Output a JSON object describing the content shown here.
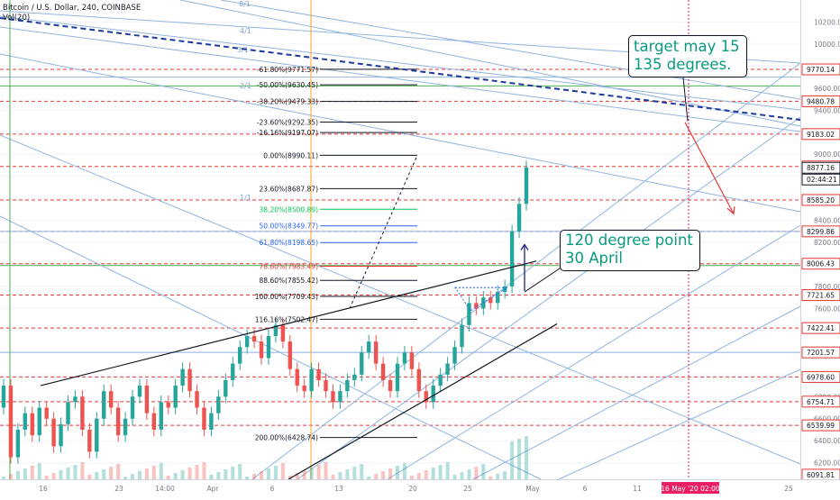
{
  "header": {
    "symbol_line": "Bitcoin / U.S. Dollar, 240, COINBASE",
    "vol_line": "Vol(20)"
  },
  "colors": {
    "up": "#26a69a",
    "down": "#ef5350",
    "hline": "#e53935",
    "blue_line": "#90b4e0",
    "teal_text": "#089981",
    "gann_dash": "#1e3a9c",
    "date_highlight": "#e91e63"
  },
  "callouts": {
    "target": [
      "target may 15",
      "135 degrees."
    ],
    "point": [
      "120 degree point",
      "30 April"
    ]
  },
  "chart_data": {
    "type": "candlestick",
    "y_axis": {
      "range": [
        6050,
        10400
      ],
      "tick_labels": [
        6200,
        6400,
        6600,
        6800,
        7000,
        7200,
        7400,
        7600,
        7800,
        8000,
        8200,
        8400,
        8600,
        8800,
        9000,
        9200,
        9400,
        9600,
        9800,
        10000,
        10200
      ],
      "price_tags": [
        9770.14,
        9480.78,
        9183.02,
        8889.46,
        8877.16,
        8585.2,
        8299.86,
        8006.43,
        7721.65,
        7422.41,
        7201.57,
        6978.6,
        6754.71,
        6539.99,
        6091.81
      ],
      "countdown": "02:44:21",
      "current_price": 8877.16
    },
    "x_axis": {
      "tick_labels": [
        "16",
        "23",
        "14:00",
        "Apr",
        "6",
        "13",
        "20",
        "25",
        "May",
        "6",
        "11",
        "25"
      ],
      "highlight_label": "16 May '20   02:00"
    },
    "horizontal_levels": [
      9770.14,
      9480.78,
      9183.02,
      8889.46,
      8585.2,
      8299.86,
      8006.43,
      7721.65,
      7422.41,
      6978.6,
      6754.71,
      6539.99
    ],
    "blue_horizontal_levels": [
      9700,
      8299.86,
      7201.57
    ],
    "fibonacci": [
      {
        "label": "-61.80%(9771.57)",
        "price": 9771.57,
        "color": "#131722"
      },
      {
        "label": "-50.00%(9630.45)",
        "price": 9630.45,
        "color": "#131722"
      },
      {
        "label": "-38.20%(9479.33)",
        "price": 9479.33,
        "color": "#131722"
      },
      {
        "label": "-23.60%(9292.35)",
        "price": 9292.35,
        "color": "#131722"
      },
      {
        "label": "-16.16%(9197.07)",
        "price": 9197.07,
        "color": "#131722"
      },
      {
        "label": "0.00%(8990.11)",
        "price": 8990.11,
        "color": "#131722"
      },
      {
        "label": "23.60%(8687.87)",
        "price": 8687.87,
        "color": "#131722"
      },
      {
        "label": "38.20%(8500.89)",
        "price": 8500.89,
        "color": "#00c853"
      },
      {
        "label": "50.00%(8349.77)",
        "price": 8349.77,
        "color": "#2962ff"
      },
      {
        "label": "61.80%(8198.65)",
        "price": 8198.65,
        "color": "#2962ff"
      },
      {
        "label": "78.60%(7983.49)",
        "price": 7983.49,
        "color": "#e53935"
      },
      {
        "label": "88.60%(7855.42)",
        "price": 7855.42,
        "color": "#131722"
      },
      {
        "label": "100.00%(7709.43)",
        "price": 7709.43,
        "color": "#131722"
      },
      {
        "label": "116.16%(7502.47)",
        "price": 7502.47,
        "color": "#131722"
      },
      {
        "label": "200.00%(6428.74)",
        "price": 6428.74,
        "color": "#131722"
      }
    ],
    "gann_labels": [
      "8/1",
      "4/1",
      "3/1",
      "2/1",
      "1/1"
    ],
    "candles_close": [
      6900,
      6250,
      6500,
      6650,
      6450,
      6700,
      6600,
      6350,
      6550,
      6750,
      6800,
      6500,
      6300,
      6600,
      6850,
      6700,
      6450,
      6600,
      6800,
      6900,
      6650,
      6500,
      6750,
      6700,
      6900,
      7050,
      6850,
      6700,
      6500,
      6650,
      6800,
      6950,
      7100,
      7250,
      7350,
      7300,
      7150,
      7350,
      7450,
      7300,
      7050,
      6900,
      6850,
      7050,
      6950,
      6850,
      6750,
      6850,
      6950,
      7000,
      7200,
      7300,
      7100,
      6950,
      6850,
      7100,
      7200,
      7050,
      6850,
      6750,
      6900,
      7000,
      7100,
      7250,
      7450,
      7650,
      7600,
      7700,
      7650,
      7750,
      7800,
      8300,
      8550,
      8880
    ],
    "title": "Bitcoin / U.S. Dollar, 240, COINBASE"
  }
}
